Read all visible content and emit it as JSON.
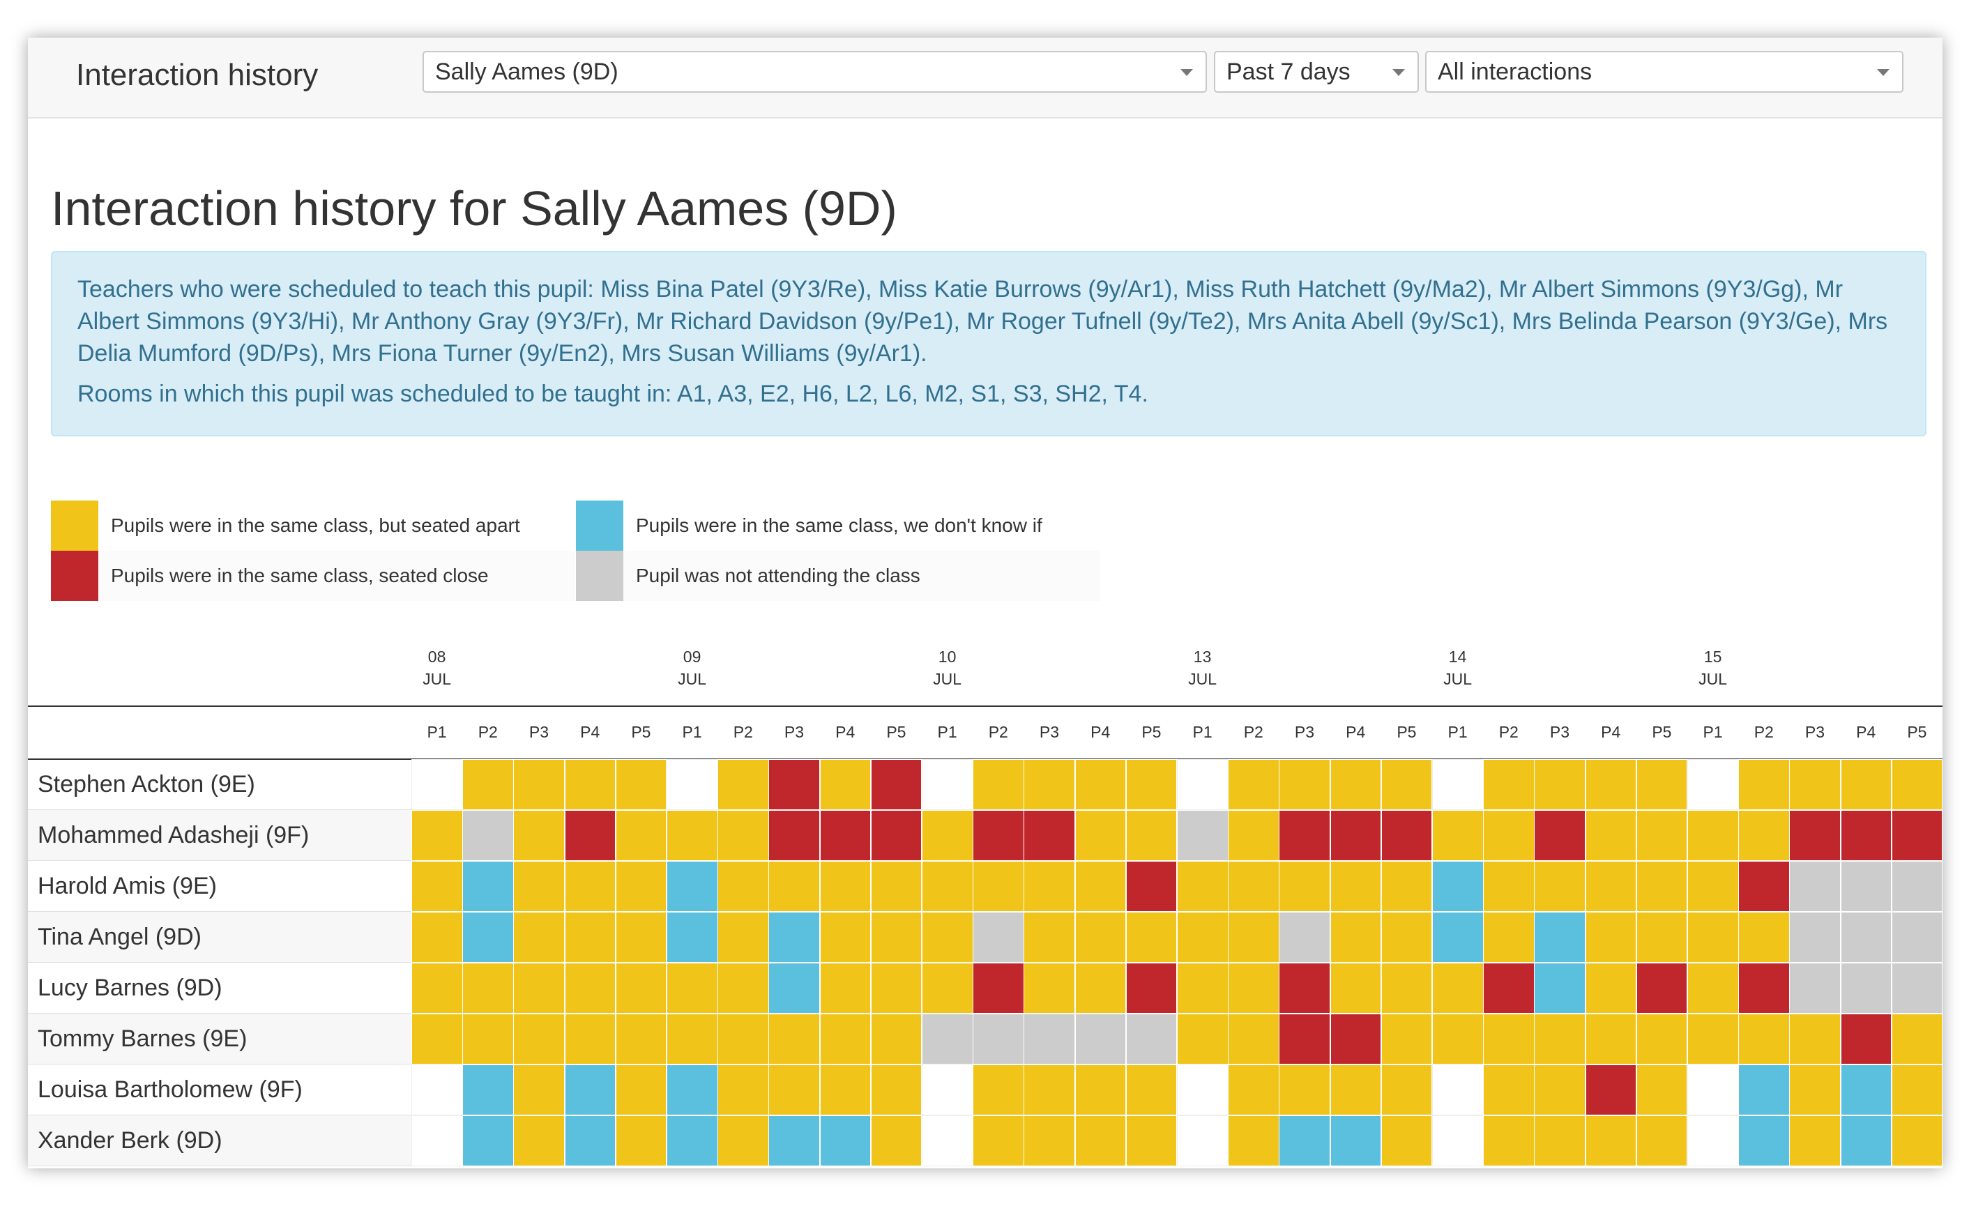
{
  "topbar": {
    "title": "Interaction history",
    "pupil_select": "Sally Aames (9D)",
    "period_select": "Past 7 days",
    "type_select": "All interactions"
  },
  "page_heading": "Interaction history for Sally Aames (9D)",
  "info": {
    "teachers": "Teachers who were scheduled to teach this pupil: Miss Bina Patel (9Y3/Re), Miss Katie Burrows (9y/Ar1), Miss Ruth Hatchett (9y/Ma2), Mr Albert Simmons (9Y3/Gg), Mr Albert Simmons (9Y3/Hi), Mr Anthony Gray (9Y3/Fr), Mr Richard Davidson (9y/Pe1), Mr Roger Tufnell (9y/Te2), Mrs Anita Abell (9y/Sc1), Mrs Belinda Pearson (9Y3/Ge), Mrs Delia Mumford (9D/Ps), Mrs Fiona Turner (9y/En2), Mrs Susan Williams (9y/Ar1).",
    "rooms": "Rooms in which this pupil was scheduled to be taught in: A1, A3, E2, H6, L2, L6, M2, S1, S3, SH2, T4."
  },
  "colors": {
    "Y": "#f0c419",
    "R": "#c0272d",
    "B": "#5bc0de",
    "G": "#cccccc",
    "W": "#ffffff"
  },
  "legend": [
    {
      "label": "Pupils were in the same class, but seated apart",
      "color": "#f0c419"
    },
    {
      "label": "Pupils were in the same class, we don't know if seated close",
      "color": "#5bc0de"
    },
    {
      "label": "Pupils were in the same class, seated close",
      "color": "#c0272d"
    },
    {
      "label": "Pupil was not attending the class",
      "color": "#cccccc"
    }
  ],
  "days": [
    {
      "day": "08",
      "month": "JUL"
    },
    {
      "day": "09",
      "month": "JUL"
    },
    {
      "day": "10",
      "month": "JUL"
    },
    {
      "day": "13",
      "month": "JUL"
    },
    {
      "day": "14",
      "month": "JUL"
    },
    {
      "day": "15",
      "month": "JUL"
    }
  ],
  "periods": [
    "P1",
    "P2",
    "P3",
    "P4",
    "P5"
  ],
  "pupils": [
    {
      "name": "Stephen Ackton (9E)",
      "cells": "WYYYYWYRYRWYYYYWYYYYWYYYYWYYYY"
    },
    {
      "name": "Mohammed Adasheji (9F)",
      "cells": "YGYRYYYRRRYRRYYGYRRRYYRYYYYRRR"
    },
    {
      "name": "Harold Amis (9E)",
      "cells": "YBYYYBYYYYYYYYRYYYYYBYYYYYRGGG"
    },
    {
      "name": "Tina Angel (9D)",
      "cells": "YBYYYBYBYYYGYYYYYGYYBYBYYYYGGG"
    },
    {
      "name": "Lucy Barnes (9D)",
      "cells": "YYYYYYYBYYYRYYRYYRYYYRBYRYRGGG"
    },
    {
      "name": "Tommy Barnes (9E)",
      "cells": "YYYYYYYYYYGGGGGYYRRYYYYYYYYYRY"
    },
    {
      "name": "Louisa Bartholomew (9F)",
      "cells": "WBYBYBYYYYWYYYYWYYYYWYYRYWBYBY"
    },
    {
      "name": "Xander Berk (9D)",
      "cells": "WBYBYBYBBYWYYYYWYBBYWYYYYWBYBY"
    }
  ]
}
